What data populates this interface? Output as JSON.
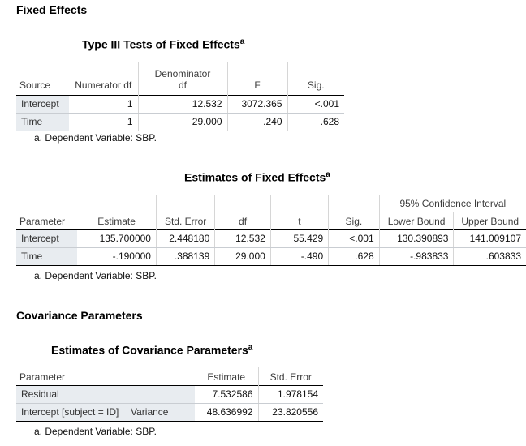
{
  "fixed_effects": {
    "heading": "Fixed Effects",
    "type3": {
      "title": "Type III Tests of Fixed Effects",
      "sup": "a",
      "headers": {
        "source": "Source",
        "num_df": "Numerator df",
        "den_df_line1": "Denominator",
        "den_df_line2": "df",
        "f": "F",
        "sig": "Sig."
      },
      "rows": [
        {
          "source": "Intercept",
          "num_df": "1",
          "den_df": "12.532",
          "f": "3072.365",
          "sig": "<.001"
        },
        {
          "source": "Time",
          "num_df": "1",
          "den_df": "29.000",
          "f": ".240",
          "sig": ".628"
        }
      ],
      "footnote": "a. Dependent Variable: SBP."
    },
    "estimates": {
      "title": "Estimates of Fixed Effects",
      "sup": "a",
      "ci_header": "95% Confidence Interval",
      "headers": {
        "parameter": "Parameter",
        "estimate": "Estimate",
        "std_error": "Std. Error",
        "df": "df",
        "t": "t",
        "sig": "Sig.",
        "lower": "Lower Bound",
        "upper": "Upper Bound"
      },
      "rows": [
        {
          "parameter": "Intercept",
          "estimate": "135.700000",
          "std_error": "2.448180",
          "df": "12.532",
          "t": "55.429",
          "sig": "<.001",
          "lower": "130.390893",
          "upper": "141.009107"
        },
        {
          "parameter": "Time",
          "estimate": "-.190000",
          "std_error": ".388139",
          "df": "29.000",
          "t": "-.490",
          "sig": ".628",
          "lower": "-.983833",
          "upper": ".603833"
        }
      ],
      "footnote": "a. Dependent Variable: SBP."
    }
  },
  "covariance": {
    "heading": "Covariance Parameters",
    "estimates": {
      "title": "Estimates of Covariance Parameters",
      "sup": "a",
      "headers": {
        "parameter": "Parameter",
        "estimate": "Estimate",
        "std_error": "Std. Error"
      },
      "rows": [
        {
          "parameter": "Residual",
          "sub": "",
          "estimate": "7.532586",
          "std_error": "1.978154"
        },
        {
          "parameter": "Intercept [subject = ID]",
          "sub": "Variance",
          "estimate": "48.636992",
          "std_error": "23.820556"
        }
      ],
      "footnote": "a. Dependent Variable: SBP."
    }
  }
}
